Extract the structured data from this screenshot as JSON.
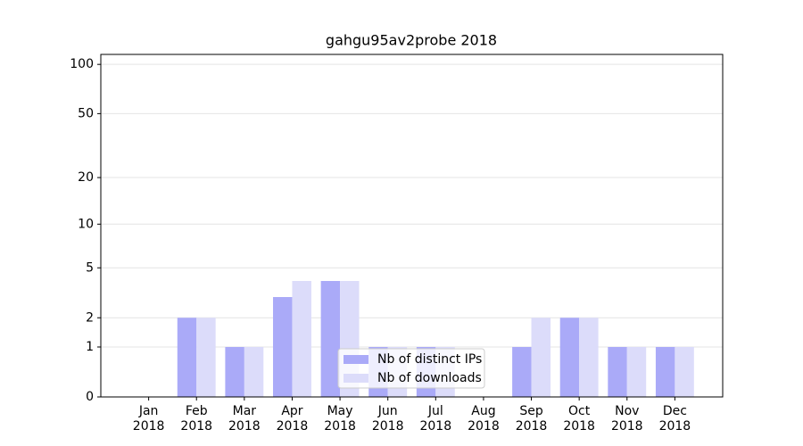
{
  "chart_data": {
    "type": "bar",
    "title": "gahgu95av2probe 2018",
    "categories": [
      "Jan 2018",
      "Feb 2018",
      "Mar 2018",
      "Apr 2018",
      "May 2018",
      "Jun 2018",
      "Jul 2018",
      "Aug 2018",
      "Sep 2018",
      "Oct 2018",
      "Nov 2018",
      "Dec 2018"
    ],
    "series": [
      {
        "name": "Nb of distinct IPs",
        "color": "#aaaaf8",
        "values": [
          0,
          2,
          1,
          3,
          4,
          1,
          1,
          0,
          1,
          2,
          1,
          1
        ]
      },
      {
        "name": "Nb of downloads",
        "color": "#dcdcfa",
        "values": [
          0,
          2,
          1,
          4,
          4,
          1,
          1,
          0,
          2,
          2,
          1,
          1
        ]
      }
    ],
    "yscale": "log1p",
    "ylim": [
      0,
      115
    ],
    "yticks": [
      0,
      1,
      2,
      5,
      10,
      20,
      50,
      100
    ],
    "grid": true,
    "legend": "lower center"
  }
}
